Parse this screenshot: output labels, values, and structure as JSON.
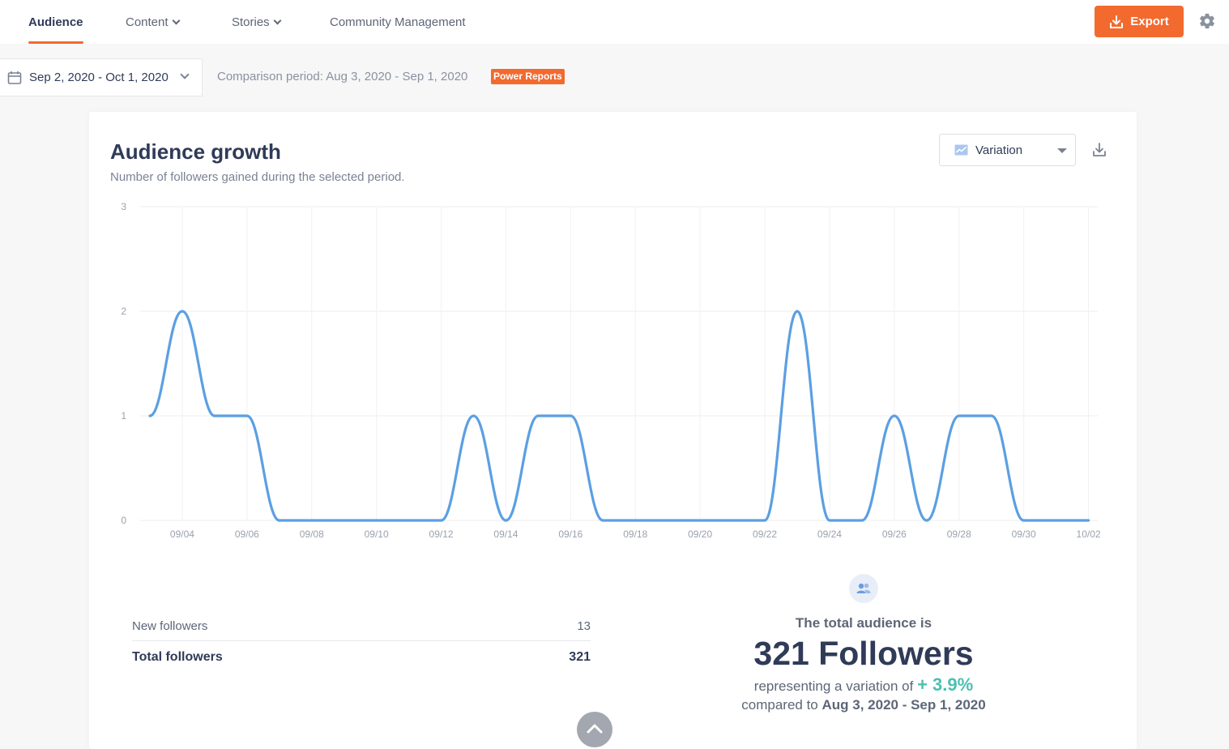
{
  "nav": {
    "tabs": [
      {
        "label": "Audience",
        "active": true
      },
      {
        "label": "Content",
        "dropdown": true
      },
      {
        "label": "Stories",
        "dropdown": true
      },
      {
        "label": "Community Management"
      }
    ],
    "export_label": "Export"
  },
  "filters": {
    "date_range": "Sep 2, 2020 - Oct 1, 2020",
    "comparison": "Comparison period: Aug 3, 2020 - Sep 1, 2020",
    "badge": "Power Reports"
  },
  "card": {
    "title": "Audience growth",
    "subtitle": "Number of followers gained during the selected period.",
    "view_select": "Variation"
  },
  "chart_data": {
    "type": "line",
    "title": "",
    "xlabel": "",
    "ylabel": "",
    "ylim": [
      0,
      3
    ],
    "yticks": [
      "0",
      "1",
      "2",
      "3"
    ],
    "xticks": [
      "09/04",
      "09/06",
      "09/08",
      "09/10",
      "09/12",
      "09/14",
      "09/16",
      "09/18",
      "09/20",
      "09/22",
      "09/24",
      "09/26",
      "09/28",
      "09/30",
      "10/02"
    ],
    "grid": true,
    "x": [
      "09/03",
      "09/04",
      "09/05",
      "09/06",
      "09/07",
      "09/08",
      "09/09",
      "09/10",
      "09/11",
      "09/12",
      "09/13",
      "09/14",
      "09/15",
      "09/16",
      "09/17",
      "09/18",
      "09/19",
      "09/20",
      "09/21",
      "09/22",
      "09/23",
      "09/24",
      "09/25",
      "09/26",
      "09/27",
      "09/28",
      "09/29",
      "09/30",
      "10/01",
      "10/02"
    ],
    "series": [
      {
        "values": [
          1,
          2,
          1,
          1,
          0,
          0,
          0,
          0,
          0,
          0,
          1,
          0,
          1,
          1,
          0,
          0,
          0,
          0,
          0,
          0,
          2,
          0,
          0,
          1,
          0,
          1,
          1,
          0,
          0,
          0
        ],
        "color": "#5b9fe3"
      }
    ]
  },
  "stats": {
    "new_label": "New followers",
    "new_value": "13",
    "total_label": "Total followers",
    "total_value": "321"
  },
  "summary": {
    "line1": "The total audience is",
    "big": "321 Followers",
    "variation_prefix": "representing a variation of",
    "variation_value": "+ 3.9%",
    "compared_prefix": "compared to",
    "compared_period": "Aug 3, 2020 - Sep 1, 2020"
  },
  "colors": {
    "accent": "#f36a2f",
    "line": "#5b9fe3",
    "positive": "#4bc0b1"
  }
}
